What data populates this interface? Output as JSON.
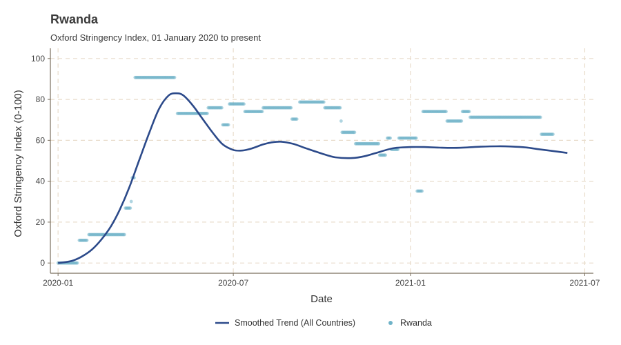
{
  "chart_data": {
    "type": "scatter",
    "title": "Rwanda",
    "subtitle": "Oxford Stringency Index, 01 January 2020 to present",
    "xlabel": "Date",
    "ylabel": "Oxford Stringency Index (0-100)",
    "x_ticks": [
      "2020-01",
      "2020-07",
      "2021-01",
      "2021-07"
    ],
    "y_ticks": [
      0,
      20,
      40,
      60,
      80,
      100
    ],
    "xlim": [
      "2019-12-24",
      "2021-07-10"
    ],
    "ylim": [
      -5,
      105
    ],
    "grid": true,
    "legend_position": "bottom",
    "colors": {
      "trend": "#2c4a8a",
      "points": "#6fb3c8",
      "axis": "#7a6f5e",
      "grid": "#e8dccb"
    },
    "series": [
      {
        "name": "Rwanda",
        "kind": "points",
        "segments": [
          {
            "from": "2020-01-01",
            "to": "2020-01-21",
            "value": 0
          },
          {
            "from": "2020-01-23",
            "to": "2020-01-31",
            "value": 11.11
          },
          {
            "from": "2020-02-02",
            "to": "2020-03-10",
            "value": 13.89
          },
          {
            "from": "2020-03-11",
            "to": "2020-03-16",
            "value": 26.85
          },
          {
            "from": "2020-03-17",
            "to": "2020-03-17",
            "value": 30.09
          },
          {
            "from": "2020-03-18",
            "to": "2020-03-20",
            "value": 41.67
          },
          {
            "from": "2020-03-21",
            "to": "2020-05-01",
            "value": 90.74
          },
          {
            "from": "2020-05-04",
            "to": "2020-06-04",
            "value": 73.15
          },
          {
            "from": "2020-06-05",
            "to": "2020-06-19",
            "value": 75.93
          },
          {
            "from": "2020-06-20",
            "to": "2020-06-26",
            "value": 67.59
          },
          {
            "from": "2020-06-27",
            "to": "2020-07-12",
            "value": 77.78
          },
          {
            "from": "2020-07-13",
            "to": "2020-07-31",
            "value": 74.07
          },
          {
            "from": "2020-08-01",
            "to": "2020-08-30",
            "value": 75.93
          },
          {
            "from": "2020-08-31",
            "to": "2020-09-05",
            "value": 70.37
          },
          {
            "from": "2020-09-08",
            "to": "2020-10-03",
            "value": 78.7
          },
          {
            "from": "2020-10-04",
            "to": "2020-10-20",
            "value": 75.93
          },
          {
            "from": "2020-10-21",
            "to": "2020-10-21",
            "value": 69.44
          },
          {
            "from": "2020-10-22",
            "to": "2020-11-04",
            "value": 63.89
          },
          {
            "from": "2020-11-05",
            "to": "2020-11-29",
            "value": 58.33
          },
          {
            "from": "2020-11-30",
            "to": "2020-12-06",
            "value": 52.78
          },
          {
            "from": "2020-12-08",
            "to": "2020-12-11",
            "value": 61.11
          },
          {
            "from": "2020-12-12",
            "to": "2020-12-19",
            "value": 55.56
          },
          {
            "from": "2020-12-20",
            "to": "2021-01-07",
            "value": 61.11
          },
          {
            "from": "2021-01-08",
            "to": "2021-01-13",
            "value": 35.19
          },
          {
            "from": "2021-01-14",
            "to": "2021-02-07",
            "value": 74.07
          },
          {
            "from": "2021-02-08",
            "to": "2021-02-23",
            "value": 69.44
          },
          {
            "from": "2021-02-24",
            "to": "2021-03-03",
            "value": 74.07
          },
          {
            "from": "2021-03-04",
            "to": "2021-05-16",
            "value": 71.3
          },
          {
            "from": "2021-05-17",
            "to": "2021-05-29",
            "value": 62.96
          }
        ]
      },
      {
        "name": "Smoothed Trend (All Countries)",
        "kind": "line",
        "points": [
          [
            "2020-01-01",
            0
          ],
          [
            "2020-01-15",
            1
          ],
          [
            "2020-01-25",
            3
          ],
          [
            "2020-02-05",
            6.5
          ],
          [
            "2020-02-15",
            11.5
          ],
          [
            "2020-02-25",
            18
          ],
          [
            "2020-03-05",
            26
          ],
          [
            "2020-03-15",
            37
          ],
          [
            "2020-03-25",
            50
          ],
          [
            "2020-04-05",
            64
          ],
          [
            "2020-04-15",
            75.5
          ],
          [
            "2020-04-25",
            82
          ],
          [
            "2020-05-03",
            83
          ],
          [
            "2020-05-10",
            82
          ],
          [
            "2020-05-20",
            77
          ],
          [
            "2020-05-30",
            70.5
          ],
          [
            "2020-06-10",
            63.5
          ],
          [
            "2020-06-20",
            58
          ],
          [
            "2020-07-01",
            55.3
          ],
          [
            "2020-07-10",
            55
          ],
          [
            "2020-07-20",
            56
          ],
          [
            "2020-08-01",
            58
          ],
          [
            "2020-08-10",
            59
          ],
          [
            "2020-08-20",
            59.3
          ],
          [
            "2020-09-01",
            58.3
          ],
          [
            "2020-09-15",
            56
          ],
          [
            "2020-10-01",
            53.5
          ],
          [
            "2020-10-15",
            51.7
          ],
          [
            "2020-11-01",
            51.3
          ],
          [
            "2020-11-15",
            52.3
          ],
          [
            "2020-12-01",
            54.5
          ],
          [
            "2020-12-15",
            56.2
          ],
          [
            "2021-01-01",
            56.7
          ],
          [
            "2021-01-15",
            56.7
          ],
          [
            "2021-02-01",
            56.4
          ],
          [
            "2021-02-15",
            56.3
          ],
          [
            "2021-03-01",
            56.5
          ],
          [
            "2021-03-15",
            56.9
          ],
          [
            "2021-04-01",
            57.1
          ],
          [
            "2021-04-15",
            57
          ],
          [
            "2021-05-01",
            56.5
          ],
          [
            "2021-05-15",
            55.6
          ],
          [
            "2021-06-01",
            54.6
          ],
          [
            "2021-06-13",
            53.8
          ]
        ]
      }
    ]
  }
}
